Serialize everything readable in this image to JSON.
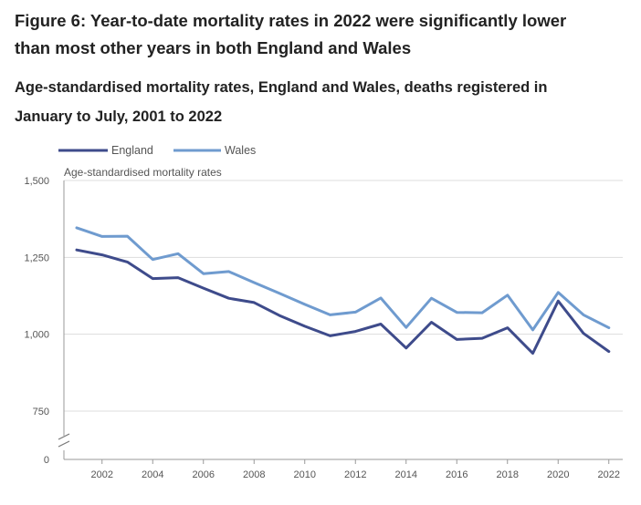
{
  "figure": {
    "title": "Figure 6: Year-to-date mortality rates in 2022 were significantly lower than most other years in both England and Wales",
    "subtitle": "Age-standardised mortality rates, England and Wales, deaths registered in January to July, 2001 to 2022"
  },
  "chart_data": {
    "type": "line",
    "ylabel": "Age-standardised mortality rates",
    "xlabel": "",
    "x": [
      2001,
      2002,
      2003,
      2004,
      2005,
      2006,
      2007,
      2008,
      2009,
      2010,
      2011,
      2012,
      2013,
      2014,
      2015,
      2016,
      2017,
      2018,
      2019,
      2020,
      2021,
      2022
    ],
    "xticks": [
      "2002",
      "2004",
      "2006",
      "2008",
      "2010",
      "2012",
      "2014",
      "2016",
      "2018",
      "2020",
      "2022"
    ],
    "yticks": [
      "0",
      "750",
      "1,000",
      "1,250",
      "1,500"
    ],
    "ylim": [
      700,
      1500
    ],
    "axis_break": true,
    "grid": true,
    "legend_position": "top-left",
    "series": [
      {
        "name": "England",
        "color": "#3e4b8b",
        "values": [
          1274,
          1258,
          1235,
          1181,
          1184,
          1150,
          1117,
          1103,
          1061,
          1026,
          995,
          1009,
          1033,
          955,
          1039,
          983,
          987,
          1021,
          938,
          1108,
          1003,
          944
        ]
      },
      {
        "name": "Wales",
        "color": "#6f9bcf",
        "values": [
          1346,
          1318,
          1319,
          1243,
          1262,
          1197,
          1204,
          1168,
          1133,
          1097,
          1063,
          1072,
          1118,
          1022,
          1117,
          1071,
          1070,
          1127,
          1014,
          1136,
          1063,
          1021
        ]
      }
    ]
  }
}
